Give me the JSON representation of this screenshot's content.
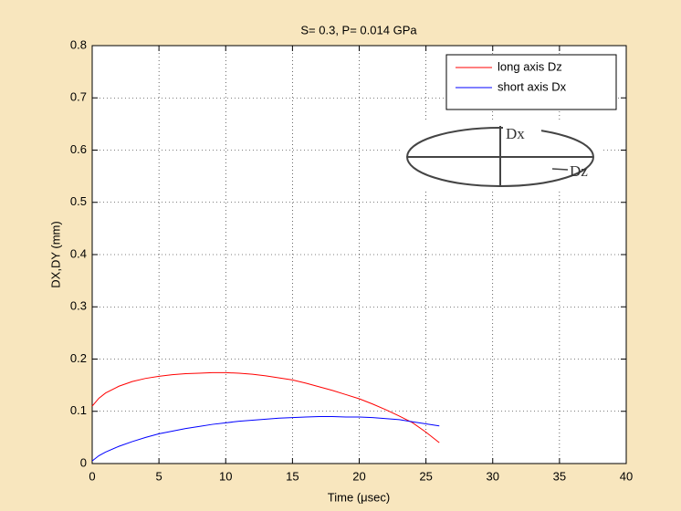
{
  "chart_data": {
    "type": "line",
    "title": "S= 0.3,  P= 0.014 GPa",
    "x_label": "Time (μsec)",
    "y_label": "DX,DY (mm)",
    "x": [
      0,
      0.5,
      1,
      2,
      3,
      4,
      5,
      6,
      7,
      8,
      9,
      10,
      11,
      12,
      13,
      14,
      15,
      16,
      17,
      18,
      19,
      20,
      21,
      22,
      23,
      24,
      25,
      26
    ],
    "series": [
      {
        "name": "long axis Dz",
        "color": "#ff0000",
        "values": [
          0.11,
          0.125,
          0.135,
          0.148,
          0.157,
          0.163,
          0.167,
          0.17,
          0.172,
          0.173,
          0.174,
          0.174,
          0.173,
          0.171,
          0.168,
          0.164,
          0.16,
          0.154,
          0.147,
          0.14,
          0.132,
          0.124,
          0.114,
          0.103,
          0.091,
          0.078,
          0.06,
          0.04
        ]
      },
      {
        "name": "short axis Dx",
        "color": "#0000ff",
        "values": [
          0.005,
          0.015,
          0.022,
          0.033,
          0.042,
          0.05,
          0.057,
          0.062,
          0.067,
          0.071,
          0.075,
          0.078,
          0.081,
          0.083,
          0.085,
          0.087,
          0.088,
          0.089,
          0.09,
          0.09,
          0.089,
          0.089,
          0.088,
          0.086,
          0.084,
          0.08,
          0.076,
          0.072
        ]
      }
    ],
    "xlim": [
      0,
      40
    ],
    "xticks": [
      0,
      5,
      10,
      15,
      20,
      25,
      30,
      35,
      40
    ],
    "ylim": [
      0,
      0.8
    ],
    "yticks": [
      0,
      0.1,
      0.2,
      0.3,
      0.4,
      0.5,
      0.6,
      0.7,
      0.8
    ],
    "grid": true,
    "legend": "northeast",
    "annotations": [
      "Dx",
      "Dz"
    ]
  }
}
